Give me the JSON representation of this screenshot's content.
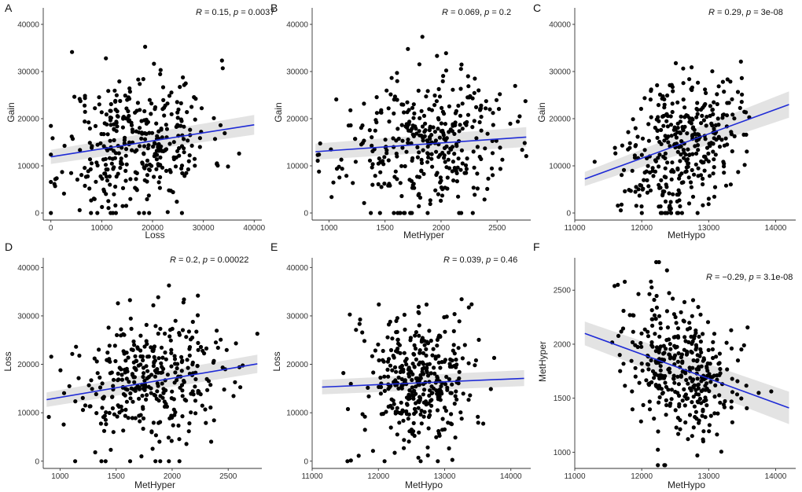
{
  "figure": {
    "colors": {
      "point": "#000000",
      "line": "#1f2bd6",
      "band": "#d9d9d9",
      "axis": "#333333"
    }
  },
  "chart_data": [
    {
      "panel": "A",
      "type": "scatter",
      "xlabel": "Loss",
      "ylabel": "Gain",
      "xlim": [
        -1500,
        41500
      ],
      "ylim": [
        -1500,
        43500
      ],
      "xticks": [
        0,
        10000,
        20000,
        30000,
        40000
      ],
      "yticks": [
        0,
        10000,
        20000,
        30000,
        40000
      ],
      "stat": {
        "r_symbol": "R",
        "r_text": " = 0.15, ",
        "p_symbol": "p",
        "p_text": " = 0.0037"
      },
      "fit": {
        "x": [
          0,
          40000
        ],
        "y": [
          11900,
          18700
        ],
        "band_lo": [
          10400,
          16600
        ],
        "band_hi": [
          13400,
          20800
        ]
      },
      "point_seed": 11,
      "n_points": 370,
      "point_dist": {
        "x_mean": 17000,
        "x_sd": 7200,
        "y_mean": 14500,
        "y_sd": 7800,
        "x_min": 0,
        "x_max": 40500,
        "y_min": 0,
        "y_max": 42000
      }
    },
    {
      "panel": "B",
      "type": "scatter",
      "xlabel": "MetHyper",
      "ylabel": "Gain",
      "xlim": [
        850,
        2800
      ],
      "ylim": [
        -1500,
        43500
      ],
      "xticks": [
        1000,
        1500,
        2000,
        2500
      ],
      "yticks": [
        0,
        10000,
        20000,
        30000,
        40000
      ],
      "stat": {
        "r_symbol": "R",
        "r_text": " = 0.069, ",
        "p_symbol": "p",
        "p_text": " = 0.2"
      },
      "fit": {
        "x": [
          880,
          2760
        ],
        "y": [
          13000,
          16100
        ],
        "band_lo": [
          11300,
          14000
        ],
        "band_hi": [
          14700,
          18200
        ]
      },
      "point_seed": 23,
      "n_points": 370,
      "point_dist": {
        "x_mean": 1850,
        "x_sd": 370,
        "y_mean": 14500,
        "y_sd": 7800,
        "x_min": 900,
        "x_max": 2760,
        "y_min": 0,
        "y_max": 41000
      }
    },
    {
      "panel": "C",
      "type": "scatter",
      "xlabel": "MetHypo",
      "ylabel": "Gain",
      "xlim": [
        11000,
        14300
      ],
      "ylim": [
        -1500,
        43500
      ],
      "xticks": [
        11000,
        12000,
        13000,
        14000
      ],
      "yticks": [
        0,
        10000,
        20000,
        30000,
        40000
      ],
      "stat": {
        "r_symbol": "R",
        "r_text": " = 0.29, ",
        "p_symbol": "p",
        "p_text": " = 3e-08"
      },
      "fit": {
        "x": [
          11150,
          14200
        ],
        "y": [
          7200,
          23000
        ],
        "band_lo": [
          5700,
          20200
        ],
        "band_hi": [
          8700,
          25800
        ]
      },
      "point_seed": 37,
      "n_points": 370,
      "point_dist": {
        "x_mean": 12600,
        "x_sd": 420,
        "y_mean": 14500,
        "y_sd": 7600,
        "x_min": 11150,
        "x_max": 14200,
        "y_min": 0,
        "y_max": 42000
      }
    },
    {
      "panel": "D",
      "type": "scatter",
      "xlabel": "MetHyper",
      "ylabel": "Loss",
      "xlim": [
        850,
        2800
      ],
      "ylim": [
        -1500,
        42000
      ],
      "xticks": [
        1000,
        1500,
        2000,
        2500
      ],
      "yticks": [
        0,
        10000,
        20000,
        30000,
        40000
      ],
      "stat": {
        "r_symbol": "R",
        "r_text": " = 0.2, ",
        "p_symbol": "p",
        "p_text": " = 0.00022"
      },
      "fit": {
        "x": [
          880,
          2760
        ],
        "y": [
          12700,
          20100
        ],
        "band_lo": [
          11200,
          18200
        ],
        "band_hi": [
          14200,
          22000
        ]
      },
      "point_seed": 53,
      "n_points": 370,
      "point_dist": {
        "x_mean": 1850,
        "x_sd": 370,
        "y_mean": 16500,
        "y_sd": 7400,
        "x_min": 900,
        "x_max": 2760,
        "y_min": 0,
        "y_max": 40500
      }
    },
    {
      "panel": "E",
      "type": "scatter",
      "xlabel": "MetHypo",
      "ylabel": "Loss",
      "xlim": [
        11000,
        14300
      ],
      "ylim": [
        -1500,
        42000
      ],
      "xticks": [
        11000,
        12000,
        13000,
        14000
      ],
      "yticks": [
        0,
        10000,
        20000,
        30000,
        40000
      ],
      "stat": {
        "r_symbol": "R",
        "r_text": " = 0.039, ",
        "p_symbol": "p",
        "p_text": " = 0.46"
      },
      "fit": {
        "x": [
          11150,
          14200
        ],
        "y": [
          15300,
          17100
        ],
        "band_lo": [
          13800,
          15500
        ],
        "band_hi": [
          16800,
          18800
        ]
      },
      "point_seed": 71,
      "n_points": 370,
      "point_dist": {
        "x_mean": 12600,
        "x_sd": 420,
        "y_mean": 16500,
        "y_sd": 7400,
        "x_min": 11150,
        "x_max": 14200,
        "y_min": 0,
        "y_max": 40500
      }
    },
    {
      "panel": "F",
      "type": "scatter",
      "xlabel": "MetHypo",
      "ylabel": "MetHyper",
      "xlim": [
        11000,
        14300
      ],
      "ylim": [
        850,
        2800
      ],
      "xticks": [
        11000,
        12000,
        13000,
        14000
      ],
      "yticks": [
        1000,
        1500,
        2000,
        2500
      ],
      "stat": {
        "r_symbol": "R",
        "r_text": " = −0.29, ",
        "p_symbol": "p",
        "p_text": " = 3.1e-08"
      },
      "fit": {
        "x": [
          11150,
          14200
        ],
        "y": [
          2100,
          1410
        ],
        "band_lo": [
          1990,
          1260
        ],
        "band_hi": [
          2210,
          1560
        ]
      },
      "point_seed": 89,
      "n_points": 370,
      "point_dist": {
        "x_mean": 12600,
        "x_sd": 420,
        "y_mean": 1850,
        "y_sd": 340,
        "x_min": 11150,
        "x_max": 14200,
        "y_min": 880,
        "y_max": 2760
      }
    }
  ]
}
